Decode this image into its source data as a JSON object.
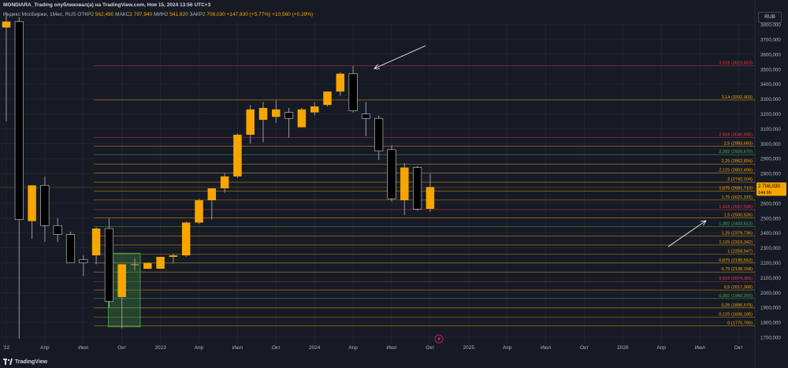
{
  "header": {
    "author_line": "MONDIARA_Trading опубликовал(а) на TradingView.com, Ноя 15, 2024 13:56 UTC+3",
    "symbol": "Индекс МосБиржи, 1Мес, RUS",
    "open_label": "ОТКР",
    "open": "2 562,490",
    "high_label": "МАКС",
    "high": "2 797,940",
    "low_label": "МИН",
    "low": "2 541,820",
    "close_label": "ЗАКР",
    "close": "2 708,030",
    "change": "+147,830 (+5,77%)",
    "change2": "+10,560 (+0,39%)"
  },
  "currency_badge": "RUB",
  "footer": {
    "brand": "TradingView"
  },
  "chart_data": {
    "type": "candlestick",
    "ylim": [
      1700,
      3900
    ],
    "y_ticks": [
      1700,
      1800,
      1900,
      2000,
      2100,
      2200,
      2300,
      2400,
      2500,
      2600,
      2700,
      2800,
      2900,
      3000,
      3100,
      3200,
      3300,
      3400,
      3500,
      3600,
      3700,
      3800
    ],
    "y_tick_labels": [
      "1700,000",
      "1800,000",
      "1900,000",
      "2000,000",
      "2100,000",
      "2200,000",
      "2300,000",
      "2400,000",
      "2500,000",
      "2600,000",
      "2700,000",
      "2800,000",
      "2900,000",
      "3000,000",
      "3100,000",
      "3200,000",
      "3300,000",
      "3400,000",
      "3500,000",
      "3600,000",
      "3700,000",
      "3800,000"
    ],
    "x_labels": [
      {
        "label": "'22",
        "idx": 0
      },
      {
        "label": "Апр",
        "idx": 3
      },
      {
        "label": "Июл",
        "idx": 6
      },
      {
        "label": "Окт",
        "idx": 9
      },
      {
        "label": "2023",
        "idx": 12
      },
      {
        "label": "Апр",
        "idx": 15
      },
      {
        "label": "Июл",
        "idx": 18
      },
      {
        "label": "Окт",
        "idx": 21
      },
      {
        "label": "2024",
        "idx": 24
      },
      {
        "label": "Апр",
        "idx": 27
      },
      {
        "label": "Июл",
        "idx": 30
      },
      {
        "label": "Окт",
        "idx": 33
      },
      {
        "label": "2025",
        "idx": 36
      },
      {
        "label": "Апр",
        "idx": 39
      },
      {
        "label": "Июл",
        "idx": 42
      },
      {
        "label": "Окт",
        "idx": 45
      },
      {
        "label": "2026",
        "idx": 48
      },
      {
        "label": "Апр",
        "idx": 51
      },
      {
        "label": "Июл",
        "idx": 54
      },
      {
        "label": "Окт",
        "idx": 57
      }
    ],
    "candles": [
      {
        "o": 3780,
        "h": 3880,
        "l": 3150,
        "c": 3820
      },
      {
        "o": 3820,
        "h": 3850,
        "l": 1690,
        "c": 2490
      },
      {
        "o": 2480,
        "h": 2700,
        "l": 2360,
        "c": 2720
      },
      {
        "o": 2720,
        "h": 2780,
        "l": 2340,
        "c": 2450
      },
      {
        "o": 2450,
        "h": 2500,
        "l": 2340,
        "c": 2390
      },
      {
        "o": 2390,
        "h": 2410,
        "l": 2220,
        "c": 2200
      },
      {
        "o": 2220,
        "h": 2250,
        "l": 2110,
        "c": 2200
      },
      {
        "o": 2250,
        "h": 2440,
        "l": 2190,
        "c": 2430
      },
      {
        "o": 2430,
        "h": 2500,
        "l": 1900,
        "c": 1940
      },
      {
        "o": 1970,
        "h": 2190,
        "l": 1760,
        "c": 2190
      },
      {
        "o": 2190,
        "h": 2230,
        "l": 2150,
        "c": 2190
      },
      {
        "o": 2160,
        "h": 2200,
        "l": 2160,
        "c": 2200
      },
      {
        "o": 2160,
        "h": 2240,
        "l": 2160,
        "c": 2240
      },
      {
        "o": 2240,
        "h": 2260,
        "l": 2200,
        "c": 2250
      },
      {
        "o": 2250,
        "h": 2480,
        "l": 2240,
        "c": 2470
      },
      {
        "o": 2470,
        "h": 2630,
        "l": 2460,
        "c": 2620
      },
      {
        "o": 2620,
        "h": 2700,
        "l": 2490,
        "c": 2700
      },
      {
        "o": 2700,
        "h": 2800,
        "l": 2670,
        "c": 2780
      },
      {
        "o": 2780,
        "h": 3070,
        "l": 2770,
        "c": 3060
      },
      {
        "o": 3060,
        "h": 3260,
        "l": 3000,
        "c": 3230
      },
      {
        "o": 3160,
        "h": 3280,
        "l": 3010,
        "c": 3240
      },
      {
        "o": 3180,
        "h": 3290,
        "l": 3140,
        "c": 3230
      },
      {
        "o": 3210,
        "h": 3240,
        "l": 3040,
        "c": 3170
      },
      {
        "o": 3110,
        "h": 3240,
        "l": 3110,
        "c": 3230
      },
      {
        "o": 3210,
        "h": 3280,
        "l": 3190,
        "c": 3250
      },
      {
        "o": 3260,
        "h": 3350,
        "l": 3250,
        "c": 3350
      },
      {
        "o": 3350,
        "h": 3480,
        "l": 3320,
        "c": 3470
      },
      {
        "o": 3470,
        "h": 3520,
        "l": 3210,
        "c": 3220
      },
      {
        "o": 3200,
        "h": 3280,
        "l": 3050,
        "c": 3170
      },
      {
        "o": 3170,
        "h": 3190,
        "l": 2890,
        "c": 2950
      },
      {
        "o": 2960,
        "h": 2990,
        "l": 2610,
        "c": 2630
      },
      {
        "o": 2620,
        "h": 2870,
        "l": 2520,
        "c": 2840
      },
      {
        "o": 2840,
        "h": 2850,
        "l": 2550,
        "c": 2560
      },
      {
        "o": 2562.49,
        "h": 2797.94,
        "l": 2541.82,
        "c": 2708.03
      }
    ],
    "fib_levels": [
      {
        "label": "3,618 (3523,853)",
        "value": 3523.853,
        "color": "#f23645"
      },
      {
        "label": "3,14 (3292,903)",
        "value": 3292.903,
        "color": "#f7a600"
      },
      {
        "label": "2,618 (3040,695)",
        "value": 3040.695,
        "color": "#f23645"
      },
      {
        "label": "2,5 (2983,683)",
        "value": 2983.683,
        "color": "#f7a600"
      },
      {
        "label": "2,382 (2926,670)",
        "value": 2926.67,
        "color": "#4caf50"
      },
      {
        "label": "2,25 (2862,894)",
        "value": 2862.894,
        "color": "#f7a600"
      },
      {
        "label": "2,125 (2802,499)",
        "value": 2802.499,
        "color": "#f7a600"
      },
      {
        "label": "2 (2742,104)",
        "value": 2742.104,
        "color": "#f7a600"
      },
      {
        "label": "1,875 (2681,710)",
        "value": 2681.71,
        "color": "#f7a600"
      },
      {
        "label": "1,75 (2621,315)",
        "value": 2621.315,
        "color": "#f7a600"
      },
      {
        "label": "1,618 (2557,538)",
        "value": 2557.538,
        "color": "#f23645"
      },
      {
        "label": "1,5 (2500,526)",
        "value": 2500.526,
        "color": "#f7a600"
      },
      {
        "label": "1,382 (2443,513)",
        "value": 2443.513,
        "color": "#4caf50"
      },
      {
        "label": "1,25 (2379,736)",
        "value": 2379.736,
        "color": "#f7a600"
      },
      {
        "label": "1,125 (2319,342)",
        "value": 2319.342,
        "color": "#f7a600"
      },
      {
        "label": "1 (2258,947)",
        "value": 2258.947,
        "color": "#f7a600"
      },
      {
        "label": "0,875 (2198,552)",
        "value": 2198.552,
        "color": "#f7a600"
      },
      {
        "label": "0,75 (2138,158)",
        "value": 2138.158,
        "color": "#f7a600"
      },
      {
        "label": "0,618 (2074,381)",
        "value": 2074.381,
        "color": "#f23645"
      },
      {
        "label": "0,5 (2017,368)",
        "value": 2017.368,
        "color": "#f7a600"
      },
      {
        "label": "0,382 (1960,356)",
        "value": 1960.356,
        "color": "#4caf50"
      },
      {
        "label": "0,25 (1896,579)",
        "value": 1896.579,
        "color": "#f7a600"
      },
      {
        "label": "0,125 (1836,185)",
        "value": 1836.185,
        "color": "#f7a600"
      },
      {
        "label": "0 (1775,790)",
        "value": 1775.79,
        "color": "#f7a600"
      }
    ],
    "last_price_label": "2 708,030",
    "countdown_label": "14d 6h",
    "colors": {
      "up": "#f7a600",
      "down": "#000000",
      "wick": "#9598a1",
      "grid": "#2a2e39",
      "bg": "#161a25",
      "axis_text": "#b2b5be",
      "zone": "#4caf50",
      "arrow": "#ffffff"
    }
  }
}
